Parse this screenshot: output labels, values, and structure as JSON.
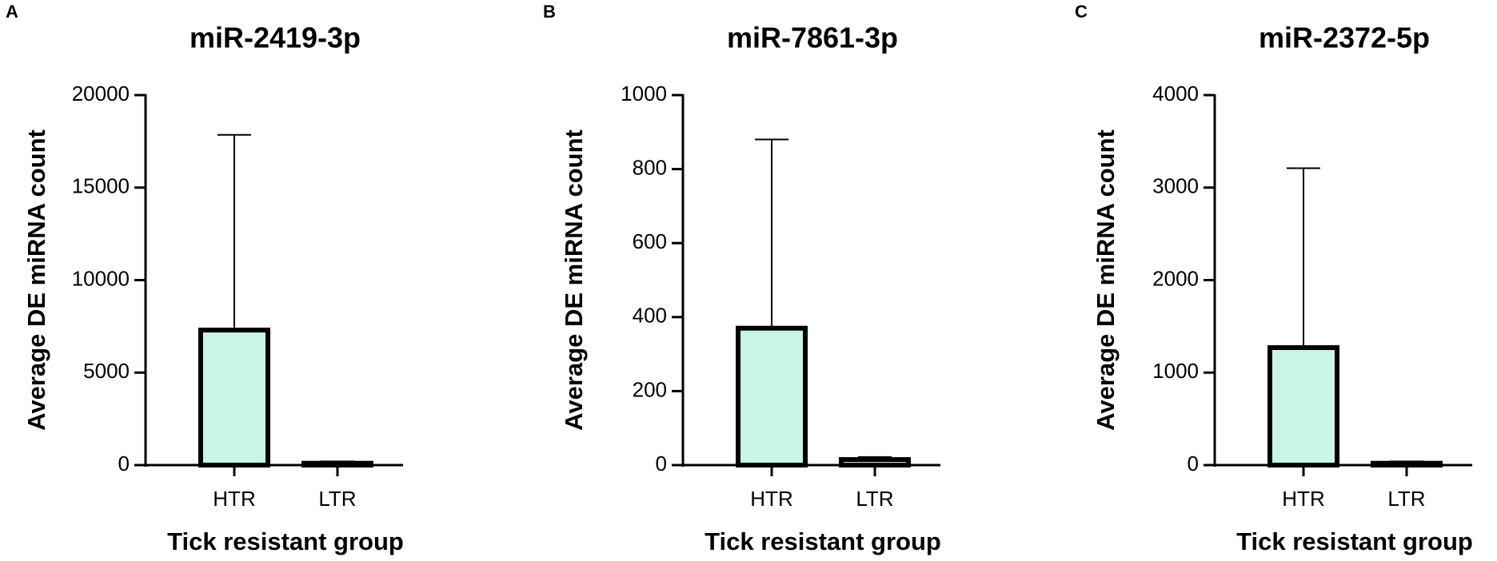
{
  "chart_data": [
    {
      "type": "bar",
      "panel": "A",
      "title": "miR-2419-3p",
      "ylabel": "Average DE miRNA count",
      "xlabel": "Tick resistant group",
      "categories": [
        "HTR",
        "LTR"
      ],
      "values": [
        7300,
        100
      ],
      "errors": [
        10550,
        100
      ],
      "color": "#c9f5e6",
      "ylim": [
        0,
        20000
      ],
      "yticks": [
        0,
        5000,
        10000,
        15000,
        20000
      ]
    },
    {
      "type": "bar",
      "panel": "B",
      "title": "miR-7861-3p",
      "ylabel": "Average DE miRNA count",
      "xlabel": "Tick resistant group",
      "categories": [
        "HTR",
        "LTR"
      ],
      "values": [
        370,
        15
      ],
      "errors": [
        510,
        7
      ],
      "color": "#c9f5e6",
      "ylim": [
        0,
        1000
      ],
      "yticks": [
        0,
        200,
        400,
        600,
        800,
        1000
      ]
    },
    {
      "type": "bar",
      "panel": "C",
      "title": "miR-2372-5p",
      "ylabel": "Average DE miRNA count",
      "xlabel": "Tick resistant group",
      "categories": [
        "HTR",
        "LTR"
      ],
      "values": [
        1270,
        20
      ],
      "errors": [
        1940,
        20
      ],
      "color": "#c9f5e6",
      "ylim": [
        0,
        4000
      ],
      "yticks": [
        0,
        1000,
        2000,
        3000,
        4000
      ]
    }
  ]
}
